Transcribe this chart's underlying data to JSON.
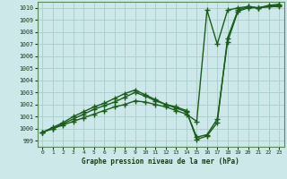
{
  "title": "Graphe pression niveau de la mer (hPa)",
  "bg_color": "#cce8e8",
  "grid_color": "#aacccc",
  "line_color": "#1a5c1a",
  "ylim": [
    998.5,
    1010.5
  ],
  "yticks": [
    999,
    1000,
    1001,
    1002,
    1003,
    1004,
    1005,
    1006,
    1007,
    1008,
    1009,
    1010
  ],
  "xlim": [
    -0.5,
    23.5
  ],
  "xticks": [
    0,
    1,
    2,
    3,
    4,
    5,
    6,
    7,
    8,
    9,
    10,
    11,
    12,
    13,
    14,
    15,
    16,
    17,
    18,
    19,
    20,
    21,
    22,
    23
  ],
  "series": [
    {
      "x": [
        0,
        1,
        2,
        3,
        4,
        5,
        6,
        7,
        8,
        9,
        10,
        11,
        12,
        13,
        14,
        15,
        16,
        17,
        18,
        19,
        20,
        21,
        22,
        23
      ],
      "y": [
        999.7,
        1000.0,
        1000.3,
        1000.6,
        1000.9,
        1001.2,
        1001.5,
        1001.8,
        1002.0,
        1002.3,
        1002.2,
        1002.0,
        1001.8,
        1001.5,
        1001.2,
        1000.6,
        1009.8,
        1007.0,
        1009.8,
        1010.0,
        1010.1,
        1010.0,
        1010.1,
        1010.1
      ],
      "marker": "+",
      "markersize": 4.5,
      "linewidth": 1.0
    },
    {
      "x": [
        0,
        1,
        2,
        3,
        4,
        5,
        6,
        7,
        8,
        9,
        10,
        11,
        12,
        13,
        14,
        15,
        16,
        17,
        18,
        19,
        20,
        21,
        22,
        23
      ],
      "y": [
        999.7,
        1000.0,
        1000.4,
        1000.8,
        1001.2,
        1001.6,
        1001.9,
        1002.2,
        1002.6,
        1003.0,
        1002.7,
        1002.3,
        1002.0,
        1001.7,
        1001.4,
        999.3,
        999.5,
        1000.8,
        1007.2,
        1009.7,
        1010.0,
        1010.0,
        1010.1,
        1010.2
      ],
      "marker": "+",
      "markersize": 4.5,
      "linewidth": 1.0
    },
    {
      "x": [
        0,
        1,
        2,
        3,
        4,
        5,
        6,
        7,
        8,
        9,
        10,
        11,
        12,
        13,
        14,
        15,
        16,
        17,
        18,
        19,
        20,
        21,
        22,
        23
      ],
      "y": [
        999.7,
        1000.1,
        1000.5,
        1001.0,
        1001.4,
        1001.8,
        1002.1,
        1002.5,
        1002.9,
        1003.2,
        1002.8,
        1002.4,
        1002.0,
        1001.8,
        1001.5,
        999.1,
        999.4,
        1000.5,
        1007.5,
        1009.8,
        1010.1,
        1010.0,
        1010.2,
        1010.3
      ],
      "marker": "+",
      "markersize": 4.5,
      "linewidth": 1.0
    }
  ]
}
